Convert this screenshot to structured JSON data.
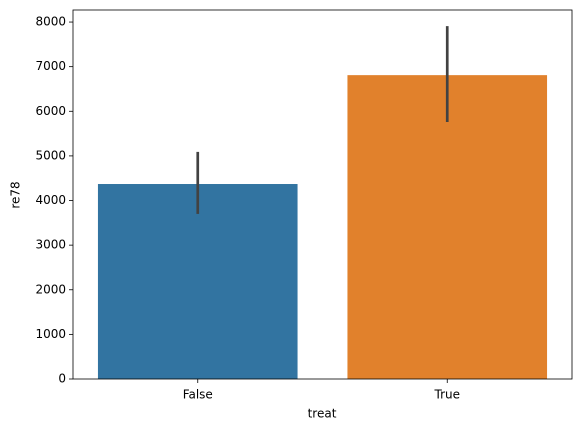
{
  "chart_data": {
    "type": "bar",
    "xlabel": "treat",
    "ylabel": "re78",
    "categories": [
      "False",
      "True"
    ],
    "values": [
      4370,
      6810
    ],
    "ci_low": [
      3700,
      5760
    ],
    "ci_high": [
      5090,
      7910
    ],
    "colors": [
      "#3274a1",
      "#e1812c"
    ],
    "error_color": "#424242",
    "ylim": [
      0,
      8270
    ],
    "yticks": [
      0,
      1000,
      2000,
      3000,
      4000,
      5000,
      6000,
      7000,
      8000
    ]
  }
}
